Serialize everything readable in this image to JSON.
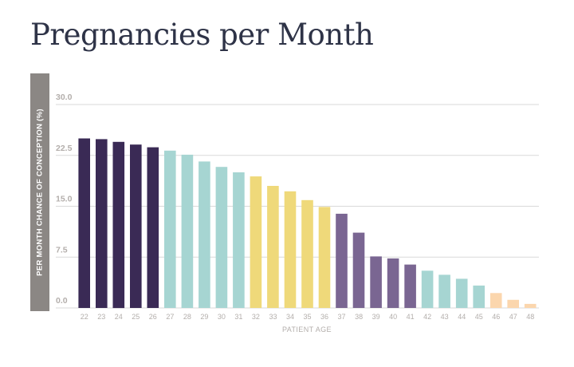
{
  "chart_data": {
    "type": "bar",
    "title": "Pregnancies per Month",
    "xlabel": "PATIENT AGE",
    "ylabel": "PER MONTH CHANCE OF CONCEPTION (%)",
    "ylim": [
      0,
      30
    ],
    "yticks": [
      "0.0",
      "7.5",
      "15.0",
      "22.5",
      "30.0"
    ],
    "grid": true,
    "categories": [
      "22",
      "23",
      "24",
      "25",
      "26",
      "27",
      "28",
      "29",
      "30",
      "31",
      "32",
      "33",
      "34",
      "35",
      "36",
      "37",
      "38",
      "39",
      "40",
      "41",
      "42",
      "43",
      "44",
      "45",
      "46",
      "47",
      "48"
    ],
    "values": [
      25.0,
      24.9,
      24.5,
      24.1,
      23.7,
      23.2,
      22.6,
      21.6,
      20.8,
      20.0,
      19.4,
      18.0,
      17.2,
      15.9,
      14.9,
      13.9,
      11.1,
      7.6,
      7.3,
      6.4,
      5.5,
      4.9,
      4.3,
      3.3,
      2.2,
      1.2,
      0.6
    ],
    "colors": [
      "#3a2a55",
      "#3a2a55",
      "#3a2a55",
      "#3a2a55",
      "#3a2a55",
      "#a6d5d2",
      "#a6d5d2",
      "#a6d5d2",
      "#a6d5d2",
      "#a6d5d2",
      "#efd97a",
      "#efd97a",
      "#efd97a",
      "#efd97a",
      "#efd97a",
      "#7a6692",
      "#7a6692",
      "#7a6692",
      "#7a6692",
      "#7a6692",
      "#a6d5d2",
      "#a6d5d2",
      "#a6d5d2",
      "#a6d5d2",
      "#fbd6ad",
      "#fbd6ad",
      "#fbd6ad"
    ],
    "tick_color": "#b3aeab",
    "grid_color": "#d9d9d9"
  }
}
